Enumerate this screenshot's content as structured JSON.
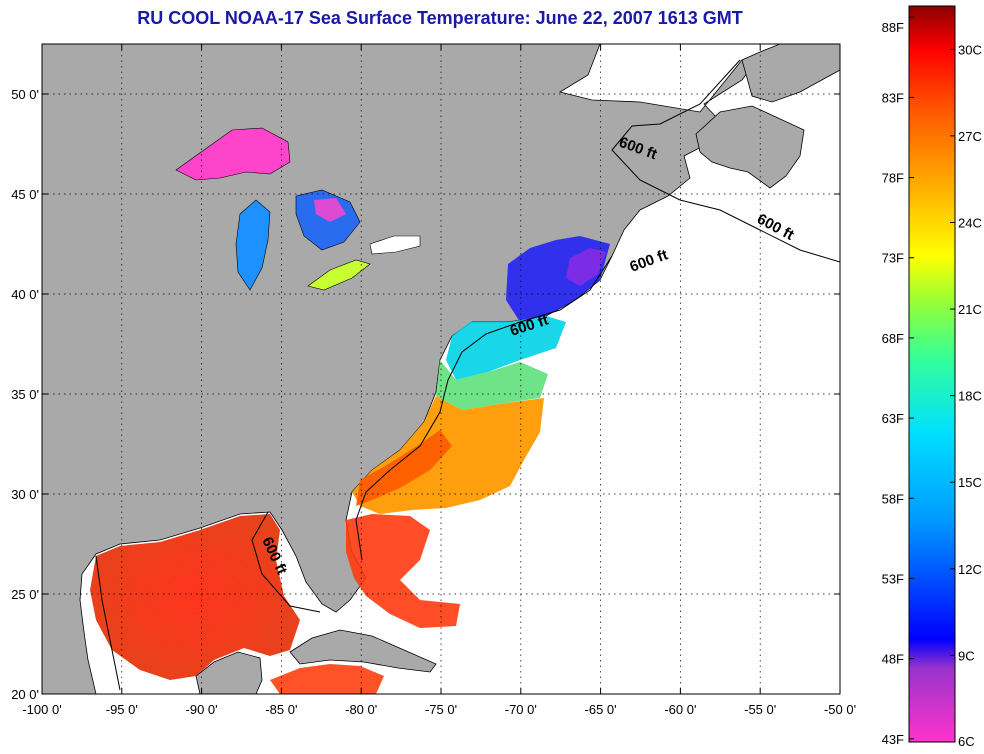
{
  "title": "RU COOL  NOAA-17  Sea Surface Temperature:  June 22, 2007 1613 GMT",
  "map": {
    "lon_range": [
      -100,
      -50
    ],
    "lat_range": [
      20,
      52.5
    ],
    "lon_ticks": [
      "-100 0'",
      "-95 0'",
      "-90 0'",
      "-85 0'",
      "-80 0'",
      "-75 0'",
      "-70 0'",
      "-65 0'",
      "-60 0'",
      "-55 0'",
      "-50 0'"
    ],
    "lat_ticks": [
      "20 0'",
      "25 0'",
      "30 0'",
      "35 0'",
      "40 0'",
      "45 0'",
      "50 0'"
    ],
    "isobath_label": "600 ft",
    "land_color": "#a9a9a9",
    "grid": "dotted"
  },
  "colorbar": {
    "fahrenheit_labels": [
      "88F",
      "83F",
      "78F",
      "73F",
      "68F",
      "63F",
      "58F",
      "53F",
      "48F",
      "43F"
    ],
    "celsius_labels": [
      "30C",
      "27C",
      "24C",
      "21C",
      "18C",
      "15C",
      "12C",
      "9C",
      "6C"
    ],
    "range_c": [
      6,
      31.5
    ]
  }
}
